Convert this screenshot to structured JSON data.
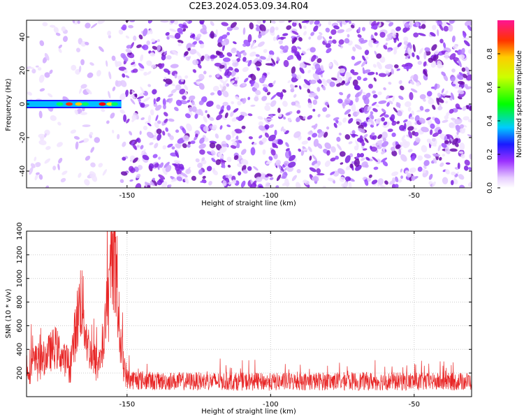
{
  "title": "C2E3.2024.053.09.34.R04",
  "colors": {
    "trace": "#e82626",
    "noise": "#8a2be2",
    "axis": "#000000"
  },
  "chart_data": [
    {
      "type": "heatmap",
      "xlabel": "Height of straight line (km)",
      "ylabel": "Frequency (Hz)",
      "xlim": [
        -185,
        -30
      ],
      "ylim": [
        -50,
        50
      ],
      "x_ticks": [
        -150,
        -100,
        -50
      ],
      "y_ticks": [
        40,
        20,
        0,
        -20,
        -40
      ],
      "colorbar": {
        "label": "Normalized spectral amplitude",
        "range": [
          0,
          1
        ],
        "ticks": [
          "0.0",
          "0.2",
          "0.4",
          "0.6",
          "0.8"
        ]
      },
      "signal_band": {
        "x_range": [
          -185,
          -152
        ],
        "frequency": 0
      }
    },
    {
      "type": "line",
      "xlabel": "Height of straight line (km)",
      "ylabel": "SNR (10 * v/v)",
      "xlim": [
        -185,
        -30
      ],
      "ylim": [
        0,
        1400
      ],
      "x_ticks": [
        -150,
        -100,
        -50
      ],
      "y_ticks": [
        200,
        400,
        600,
        800,
        1000,
        1200,
        1400
      ],
      "series": [
        {
          "x": [
            -185,
            -180,
            -175,
            -172,
            -170,
            -168,
            -166,
            -164,
            -162,
            -160,
            -158,
            -156,
            -155,
            -154,
            -153,
            -152,
            -150,
            -140,
            -120,
            -100,
            -80,
            -60,
            -40,
            -30
          ],
          "y": [
            250,
            300,
            420,
            320,
            250,
            550,
            850,
            480,
            300,
            280,
            450,
            900,
            1400,
            1000,
            700,
            400,
            150,
            130,
            130,
            125,
            130,
            130,
            125,
            130
          ]
        }
      ]
    }
  ]
}
